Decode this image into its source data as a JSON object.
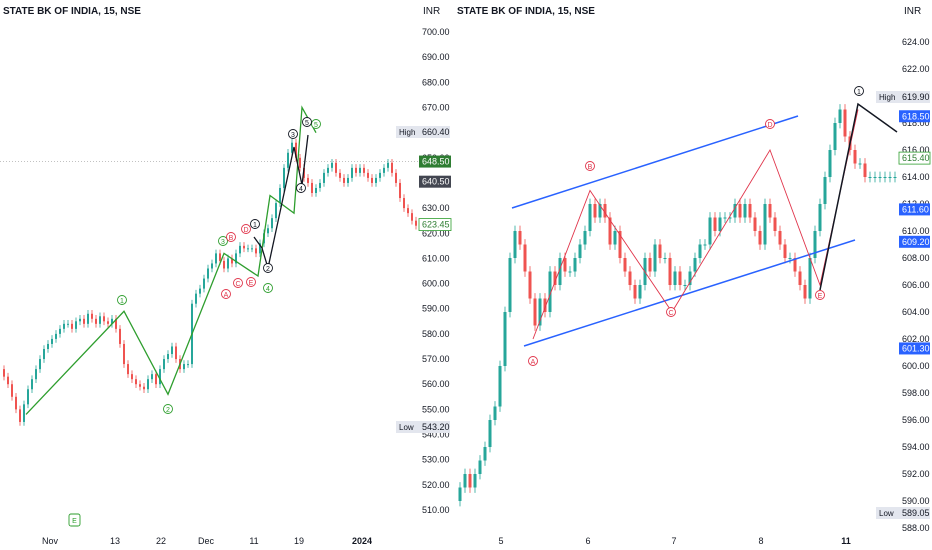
{
  "left": {
    "title": "STATE BK OF INDIA, 15, NSE",
    "currency": "INR",
    "y_ticks": [
      "700.00",
      "690.00",
      "680.00",
      "670.00",
      "660.00",
      "650.00",
      "640.00",
      "630.00",
      "620.00",
      "610.00",
      "600.00",
      "590.00",
      "580.00",
      "570.00",
      "560.00",
      "550.00",
      "540.00",
      "530.00",
      "520.00",
      "510.00"
    ],
    "x_ticks": [
      "Nov",
      "13",
      "22",
      "Dec",
      "11",
      "19",
      "2024"
    ],
    "high_label": "High",
    "high_value": "660.40",
    "low_label": "Low",
    "low_value": "543.20",
    "price_tags": [
      {
        "value": "648.50",
        "bg": "#2e7d32",
        "fg": "#ffffff"
      },
      {
        "value": "640.50",
        "bg": "#434651",
        "fg": "#ffffff"
      },
      {
        "value": "623.45",
        "bg": "#ffffff",
        "fg": "#2e7d32"
      }
    ],
    "wave_labels": [
      "1",
      "2",
      "3",
      "4",
      "5",
      "A",
      "B",
      "C",
      "D",
      "E"
    ],
    "event_badge": "E"
  },
  "right": {
    "title": "STATE BK OF INDIA, 15, NSE",
    "currency": "INR",
    "y_ticks": [
      "624.00",
      "622.00",
      "620.00",
      "618.00",
      "616.00",
      "614.00",
      "612.00",
      "610.00",
      "608.00",
      "606.00",
      "604.00",
      "602.00",
      "600.00",
      "598.00",
      "596.00",
      "594.00",
      "592.00",
      "590.00",
      "588.00"
    ],
    "x_ticks": [
      "5",
      "6",
      "7",
      "8",
      "11"
    ],
    "high_label": "High",
    "high_value": "619.90",
    "low_label": "Low",
    "low_value": "589.05",
    "price_tags": [
      {
        "value": "618.50",
        "bg": "#2962ff",
        "fg": "#ffffff"
      },
      {
        "value": "615.40",
        "bg": "#ffffff",
        "fg": "#2e7d32"
      },
      {
        "value": "611.60",
        "bg": "#2962ff",
        "fg": "#ffffff"
      },
      {
        "value": "609.20",
        "bg": "#2962ff",
        "fg": "#ffffff"
      },
      {
        "value": "601.30",
        "bg": "#2962ff",
        "fg": "#ffffff"
      }
    ],
    "wave_labels": [
      "A",
      "B",
      "C",
      "D",
      "E",
      "1"
    ]
  },
  "chart_data": [
    {
      "type": "line",
      "title": "STATE BK OF INDIA, 15, NSE",
      "xlabel": "",
      "ylabel": "INR",
      "ylim": [
        505,
        705
      ],
      "x_ticks": [
        "Nov",
        "13",
        "22",
        "Dec",
        "11",
        "19",
        "2024"
      ],
      "series": [
        {
          "name": "",
          "x": [
            0,
            4,
            8,
            12,
            16,
            20,
            24,
            28,
            32,
            36,
            40,
            44,
            48,
            52,
            56,
            60,
            64,
            68,
            72,
            76,
            80,
            84,
            88,
            92,
            96,
            100,
            104,
            108,
            112,
            116,
            120,
            124,
            128,
            132,
            136,
            140,
            144,
            148,
            152,
            156,
            160,
            164,
            168,
            172,
            176,
            180,
            184,
            188,
            192,
            196,
            200,
            204,
            208,
            212,
            216,
            220,
            224,
            228,
            232,
            236,
            240,
            244,
            248,
            252,
            256,
            260,
            264,
            268,
            272,
            276,
            280,
            284,
            288,
            292,
            296,
            300,
            304,
            308,
            312,
            316,
            320,
            324,
            328,
            332,
            336,
            340,
            344,
            348,
            352,
            356,
            360,
            364,
            368,
            372,
            376,
            380,
            384,
            388,
            392,
            396,
            400,
            404,
            408,
            412,
            416
          ],
          "values": [
            566,
            563,
            560,
            555,
            550,
            545,
            552,
            558,
            562,
            566,
            570,
            574,
            576,
            578,
            580,
            582,
            584,
            584,
            582,
            585,
            586,
            584,
            588,
            586,
            584,
            587,
            585,
            584,
            586,
            582,
            576,
            568,
            564,
            562,
            560,
            559,
            558,
            562,
            564,
            560,
            566,
            570,
            572,
            575,
            570,
            566,
            568,
            568,
            592,
            596,
            598,
            602,
            606,
            608,
            612,
            609,
            606,
            610,
            608,
            612,
            615,
            614,
            614,
            614,
            612,
            616,
            620,
            622,
            626,
            632,
            638,
            646,
            652,
            656,
            650,
            646,
            642,
            640,
            636,
            638,
            640,
            644,
            646,
            648,
            644,
            642,
            640,
            642,
            646,
            644,
            646,
            644,
            642,
            640,
            642,
            644,
            646,
            648,
            644,
            640,
            634,
            630,
            628,
            625,
            623
          ]
        },
        {
          "name": "",
          "x": [
            26,
            124,
            168,
            224,
            258,
            270,
            294,
            302,
            316
          ],
          "values": [
            548,
            589,
            556,
            612,
            603,
            635,
            628,
            670,
            660
          ]
        }
      ],
      "annotations": [
        "1",
        "2",
        "3",
        "4",
        "5",
        "A",
        "B",
        "C",
        "D",
        "E"
      ],
      "high": 660.4,
      "low": 543.2
    },
    {
      "type": "line",
      "title": "STATE BK OF INDIA, 15, NSE",
      "xlabel": "",
      "ylabel": "INR",
      "ylim": [
        588,
        625
      ],
      "x_ticks": [
        "5",
        "6",
        "7",
        "8",
        "11"
      ],
      "series": [
        {
          "name": "",
          "x": [
            455,
            460,
            465,
            470,
            475,
            480,
            485,
            490,
            495,
            500,
            505,
            510,
            515,
            520,
            525,
            530,
            535,
            540,
            545,
            550,
            555,
            560,
            565,
            570,
            575,
            580,
            585,
            590,
            595,
            600,
            605,
            610,
            615,
            620,
            625,
            630,
            635,
            640,
            645,
            650,
            655,
            660,
            665,
            670,
            675,
            680,
            685,
            690,
            695,
            700,
            705,
            710,
            715,
            720,
            725,
            730,
            735,
            740,
            745,
            750,
            755,
            760,
            765,
            770,
            775,
            780,
            785,
            790,
            795,
            800,
            805,
            810,
            815,
            820,
            825,
            830,
            835,
            840,
            845,
            850,
            855,
            860,
            865,
            870,
            875,
            880,
            885,
            890,
            895
          ],
          "values": [
            590,
            591,
            592,
            591,
            592,
            593,
            594,
            596,
            597,
            600,
            604,
            608,
            610,
            609,
            607,
            605,
            603,
            605,
            604,
            607,
            606,
            608,
            607,
            607,
            608,
            609,
            610,
            612,
            611,
            612,
            611,
            609,
            610,
            608,
            607,
            606,
            605,
            606,
            608,
            607,
            609,
            608,
            608,
            606,
            607,
            606,
            606,
            607,
            608,
            609,
            609,
            611,
            610,
            611,
            611,
            611,
            612,
            611,
            612,
            611,
            610,
            609,
            612,
            611,
            610,
            609,
            608,
            608,
            607,
            606,
            605,
            608,
            610,
            612,
            614,
            616,
            618,
            619,
            617,
            616,
            615,
            615,
            614,
            614,
            614,
            614,
            614,
            614,
            614
          ]
        },
        {
          "name": "",
          "x": [
            533,
            590,
            672,
            770,
            820,
            858
          ],
          "values": [
            602,
            613,
            604,
            616,
            606,
            619
          ]
        }
      ],
      "annotations": [
        "A",
        "B",
        "C",
        "D",
        "E",
        "1"
      ],
      "high": 619.9,
      "low": 589.05
    }
  ],
  "colors": {
    "up": "#26a69a",
    "down": "#ef5350",
    "wave_green": "#2e9e2e",
    "wave_black": "#131722",
    "wave_red": "#e0354b",
    "channel_blue": "#2962ff",
    "grid_text": "#131722",
    "axis_text": "#131722"
  }
}
